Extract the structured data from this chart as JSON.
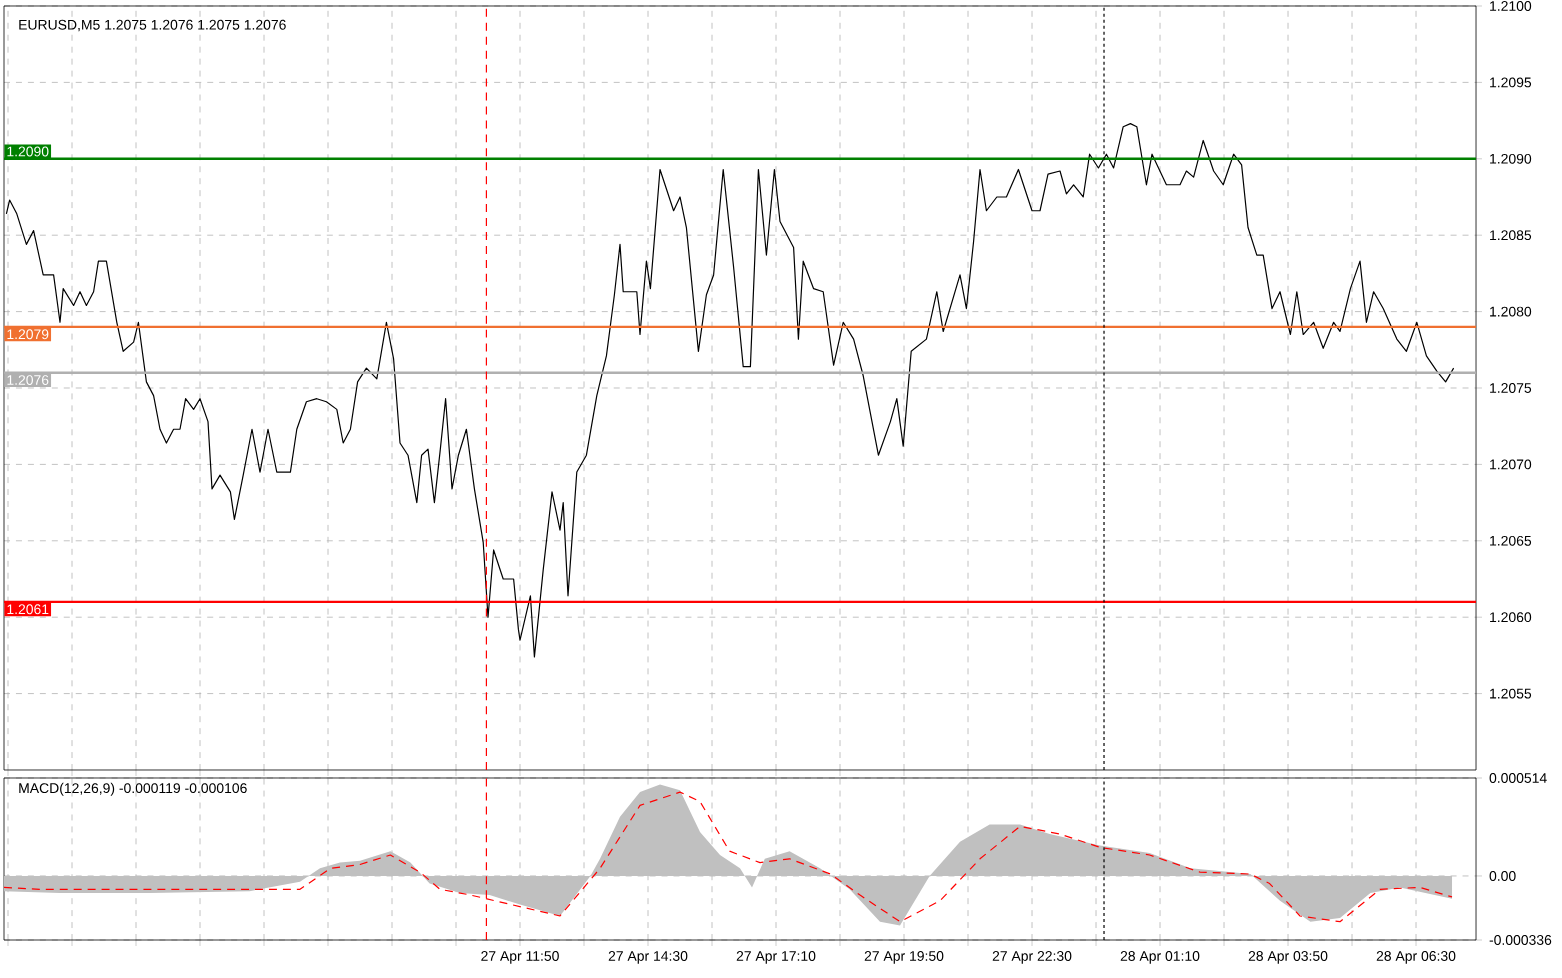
{
  "chart_data": [
    {
      "type": "line",
      "title": "EURUSD,M5  1.2075 1.2076 1.2075 1.2076",
      "grid": true,
      "tick_labels": "y",
      "xlim": [
        "--04-27T01:05",
        "--04-28T07:45"
      ],
      "xticks": [
        {
          "value": "--04-27T01:10",
          "label": null
        },
        {
          "value": "--04-27T02:30",
          "label": null
        },
        {
          "value": "--04-27T03:50",
          "label": null
        },
        {
          "value": "--04-27T05:10",
          "label": null
        },
        {
          "value": "--04-27T06:30",
          "label": null
        },
        {
          "value": "--04-27T07:50",
          "label": null
        },
        {
          "value": "--04-27T09:10",
          "label": null
        },
        {
          "value": "--04-27T10:30",
          "label": null
        },
        {
          "value": "--04-27T11:50",
          "label": null
        },
        {
          "value": "--04-27T13:10",
          "label": null
        },
        {
          "value": "--04-27T14:30",
          "label": null
        },
        {
          "value": "--04-27T15:50",
          "label": null
        },
        {
          "value": "--04-27T17:10",
          "label": null
        },
        {
          "value": "--04-27T18:30",
          "label": null
        },
        {
          "value": "--04-27T19:50",
          "label": null
        },
        {
          "value": "--04-27T21:10",
          "label": null
        },
        {
          "value": "--04-27T22:30",
          "label": null
        },
        {
          "value": "--04-27T23:50",
          "label": null
        },
        {
          "value": "--04-28T01:10",
          "label": null
        },
        {
          "value": "--04-28T02:30",
          "label": null
        },
        {
          "value": "--04-28T03:50",
          "label": null
        },
        {
          "value": "--04-28T05:10",
          "label": null
        },
        {
          "value": "--04-28T06:30",
          "label": null
        }
      ],
      "ylim": [
        1.205,
        1.21
      ],
      "yticks": [
        {
          "value": 1.2055,
          "label": "1.2055"
        },
        {
          "value": 1.206,
          "label": "1.2060"
        },
        {
          "value": 1.2065,
          "label": "1.2065"
        },
        {
          "value": 1.207,
          "label": "1.2070"
        },
        {
          "value": 1.2075,
          "label": "1.2075"
        },
        {
          "value": 1.208,
          "label": "1.2080"
        },
        {
          "value": 1.2085,
          "label": "1.2085"
        },
        {
          "value": 1.209,
          "label": "1.2090"
        },
        {
          "value": 1.2095,
          "label": "1.2095"
        },
        {
          "value": 1.21,
          "label": "1.2100"
        }
      ],
      "ref_lines": [
        {
          "axis": "y",
          "value": 1.209,
          "label": "1.2090",
          "color": "#008000"
        },
        {
          "axis": "y",
          "value": 1.2079,
          "label": "1.2079",
          "color": "#f07030"
        },
        {
          "axis": "y",
          "value": 1.2076,
          "label": "1.2076",
          "color": "#b0b0b0"
        },
        {
          "axis": "y",
          "value": 1.2061,
          "label": "1.2061",
          "color": "#ff0000"
        },
        {
          "axis": "x",
          "value": "--04-27T11:08",
          "color": "#ff0000",
          "line_style": "dashed"
        },
        {
          "axis": "x",
          "value": "--04-28T00:00",
          "color": "#000000",
          "line_style": "dotted"
        }
      ],
      "series": [
        {
          "color": "#000000",
          "x": [
            "--04-27T01:08",
            "--04-27T01:12",
            "--04-27T01:21",
            "--04-27T01:33",
            "--04-27T01:42",
            "--04-27T01:54",
            "--04-27T02:07",
            "--04-27T02:15",
            "--04-27T02:19",
            "--04-27T02:32",
            "--04-27T02:40",
            "--04-27T02:48",
            "--04-27T02:57",
            "--04-27T03:03",
            "--04-27T03:13",
            "--04-27T03:26",
            "--04-27T03:34",
            "--04-27T03:47",
            "--04-27T03:53",
            "--04-27T04:03",
            "--04-27T04:12",
            "--04-27T04:20",
            "--04-27T04:28",
            "--04-27T04:37",
            "--04-27T04:45",
            "--04-27T04:52",
            "--04-27T05:02",
            "--04-27T05:10",
            "--04-27T05:20",
            "--04-27T05:25",
            "--04-27T05:35",
            "--04-27T05:48",
            "--04-27T05:53",
            "--04-27T06:04",
            "--04-27T06:15",
            "--04-27T06:25",
            "--04-27T06:35",
            "--04-27T06:46",
            "--04-27T07:03",
            "--04-27T07:11",
            "--04-27T07:23",
            "--04-27T07:36",
            "--04-27T07:48",
            "--04-27T08:01",
            "--04-27T08:09",
            "--04-27T08:18",
            "--04-27T08:27",
            "--04-27T08:38",
            "--04-27T08:51",
            "--04-27T09:03",
            "--04-27T09:12",
            "--04-27T09:20",
            "--04-27T09:30",
            "--04-27T09:41",
            "--04-27T09:47",
            "--04-27T09:55",
            "--04-27T10:03",
            "--04-27T10:10",
            "--04-27T10:17",
            "--04-27T10:25",
            "--04-27T10:33",
            "--04-27T10:43",
            "--04-27T10:53",
            "--04-27T11:04",
            "--04-27T11:10",
            "--04-27T11:17",
            "--04-27T11:29",
            "--04-27T11:42",
            "--04-27T11:48",
            "--04-27T11:50",
            "--04-27T12:03",
            "--04-27T12:08",
            "--04-27T12:19",
            "--04-27T12:30",
            "--04-27T12:40",
            "--04-27T12:44",
            "--04-27T12:50",
            "--04-27T13:01",
            "--04-27T13:13",
            "--04-27T13:26",
            "--04-27T13:38",
            "--04-27T13:48",
            "--04-27T13:55",
            "--04-27T13:59",
            "--04-27T14:16",
            "--04-27T14:20",
            "--04-27T14:28",
            "--04-27T14:33",
            "--04-27T14:45",
            "--04-27T15:02",
            "--04-27T15:10",
            "--04-27T15:18",
            "--04-27T15:33",
            "--04-27T15:43",
            "--04-27T15:52",
            "--04-27T16:04",
            "--04-27T16:17",
            "--04-27T16:29",
            "--04-27T16:38",
            "--04-27T16:48",
            "--04-27T16:58",
            "--04-27T17:08",
            "--04-27T17:15",
            "--04-27T17:32",
            "--04-27T17:38",
            "--04-27T17:44",
            "--04-27T17:57",
            "--04-27T18:09",
            "--04-27T18:22",
            "--04-27T18:34",
            "--04-27T18:47",
            "--04-27T18:59",
            "--04-27T19:18",
            "--04-27T19:33",
            "--04-27T19:41",
            "--04-27T19:49",
            "--04-27T19:59",
            "--04-27T20:18",
            "--04-27T20:31",
            "--04-27T20:39",
            "--04-27T21:00",
            "--04-27T21:08",
            "--04-27T21:17",
            "--04-27T21:25",
            "--04-27T21:33",
            "--04-27T21:46",
            "--04-27T21:58",
            "--04-27T22:13",
            "--04-27T22:30",
            "--04-27T22:40",
            "--04-27T22:50",
            "--04-27T23:05",
            "--04-27T23:13",
            "--04-27T23:22",
            "--04-27T23:34",
            "--04-27T23:42",
            "--04-27T23:53",
            "--04-28T00:03",
            "--04-28T00:12",
            "--04-28T00:24",
            "--04-28T00:33",
            "--04-28T00:41",
            "--04-28T00:53",
            "--04-28T01:00",
            "--04-28T01:18",
            "--04-28T01:35",
            "--04-28T01:43",
            "--04-28T01:52",
            "--04-28T02:04",
            "--04-28T02:17",
            "--04-28T02:29",
            "--04-28T02:42",
            "--04-28T02:52",
            "--04-28T03:00",
            "--04-28T03:11",
            "--04-28T03:19",
            "--04-28T03:30",
            "--04-28T03:40",
            "--04-28T03:53",
            "--04-28T04:01",
            "--04-28T04:09",
            "--04-28T04:22",
            "--04-28T04:34",
            "--04-28T04:47",
            "--04-28T04:55",
            "--04-28T05:08",
            "--04-28T05:20",
            "--04-28T05:28",
            "--04-28T05:37",
            "--04-28T05:49",
            "--04-28T06:06",
            "--04-28T06:18",
            "--04-28T06:31",
            "--04-28T06:43",
            "--04-28T06:56",
            "--04-28T07:07",
            "--04-28T07:17"
          ],
          "values": [
            1.20864,
            1.20873,
            1.20864,
            1.20844,
            1.20853,
            1.20824,
            1.20824,
            1.20793,
            1.20815,
            1.20804,
            1.20813,
            1.20804,
            1.20813,
            1.20833,
            1.20833,
            1.20793,
            1.20774,
            1.2078,
            1.20793,
            1.20754,
            1.20745,
            1.20723,
            1.20714,
            1.20723,
            1.20723,
            1.20743,
            1.20736,
            1.20743,
            1.20728,
            1.20684,
            1.20693,
            1.20682,
            1.20664,
            1.20693,
            1.20723,
            1.20695,
            1.20723,
            1.20695,
            1.20695,
            1.20723,
            1.20741,
            1.20743,
            1.20741,
            1.20736,
            1.20714,
            1.20723,
            1.20754,
            1.20763,
            1.20756,
            1.20793,
            1.20769,
            1.20714,
            1.20706,
            1.20675,
            1.20706,
            1.2071,
            1.20675,
            1.20708,
            1.20743,
            1.20684,
            1.20706,
            1.20723,
            1.20684,
            1.20649,
            1.206,
            1.20644,
            1.20625,
            1.20625,
            1.20592,
            1.20585,
            1.20614,
            1.20574,
            1.20631,
            1.20682,
            1.20657,
            1.20675,
            1.20614,
            1.20695,
            1.20706,
            1.20745,
            1.20771,
            1.20811,
            1.20844,
            1.20813,
            1.20813,
            1.20785,
            1.20833,
            1.20815,
            1.20893,
            1.20866,
            1.20875,
            1.20855,
            1.20774,
            1.20811,
            1.20824,
            1.20893,
            1.20829,
            1.20764,
            1.20764,
            1.20893,
            1.20837,
            1.20893,
            1.20859,
            1.20842,
            1.20782,
            1.20833,
            1.20815,
            1.20813,
            1.20765,
            1.20793,
            1.20782,
            1.20758,
            1.20706,
            1.20728,
            1.20743,
            1.20712,
            1.20774,
            1.20782,
            1.20813,
            1.20787,
            1.20824,
            1.20802,
            1.20846,
            1.20893,
            1.20866,
            1.20875,
            1.20875,
            1.20893,
            1.20866,
            1.20866,
            1.2089,
            1.20892,
            1.20877,
            1.20883,
            1.20875,
            1.20903,
            1.20894,
            1.20903,
            1.20894,
            1.20921,
            1.20923,
            1.20921,
            1.20883,
            1.20903,
            1.20883,
            1.20883,
            1.20892,
            1.20888,
            1.20912,
            1.20892,
            1.20883,
            1.20903,
            1.20896,
            1.20855,
            1.20837,
            1.20837,
            1.20802,
            1.20813,
            1.20785,
            1.20813,
            1.20785,
            1.20793,
            1.20776,
            1.20793,
            1.20787,
            1.20815,
            1.20833,
            1.20793,
            1.20813,
            1.20802,
            1.20782,
            1.20774,
            1.20793,
            1.20771,
            1.20761,
            1.20754,
            1.20763
          ]
        }
      ]
    },
    {
      "type": "line",
      "title": "MACD(12,26,9) -0.000119 -0.000106",
      "grid": true,
      "xlim": [
        "--04-27T01:05",
        "--04-28T07:45"
      ],
      "xticks": [
        {
          "value": "--04-27T01:10",
          "label": null
        },
        {
          "value": "--04-27T02:30",
          "label": null
        },
        {
          "value": "--04-27T03:50",
          "label": null
        },
        {
          "value": "--04-27T05:10",
          "label": null
        },
        {
          "value": "--04-27T06:30",
          "label": null
        },
        {
          "value": "--04-27T07:50",
          "label": null
        },
        {
          "value": "--04-27T09:10",
          "label": null
        },
        {
          "value": "--04-27T10:30",
          "label": null
        },
        {
          "value": "--04-27T11:50",
          "label": "27 Apr 11:50"
        },
        {
          "value": "--04-27T13:10",
          "label": null
        },
        {
          "value": "--04-27T14:30",
          "label": "27 Apr 14:30"
        },
        {
          "value": "--04-27T15:50",
          "label": null
        },
        {
          "value": "--04-27T17:10",
          "label": "27 Apr 17:10"
        },
        {
          "value": "--04-27T18:30",
          "label": null
        },
        {
          "value": "--04-27T19:50",
          "label": "27 Apr 19:50"
        },
        {
          "value": "--04-27T21:10",
          "label": null
        },
        {
          "value": "--04-27T22:30",
          "label": "27 Apr 22:30"
        },
        {
          "value": "--04-27T23:50",
          "label": null
        },
        {
          "value": "--04-28T01:10",
          "label": "28 Apr 01:10"
        },
        {
          "value": "--04-28T02:30",
          "label": null
        },
        {
          "value": "--04-28T03:50",
          "label": "28 Apr 03:50"
        },
        {
          "value": "--04-28T05:10",
          "label": null
        },
        {
          "value": "--04-28T06:30",
          "label": "28 Apr 06:30"
        }
      ],
      "ylim": [
        -0.000336,
        0.000514
      ],
      "yticks": [
        {
          "value": -0.000336,
          "label": "-0.000336"
        },
        {
          "value": 0,
          "label": "0.00"
        },
        {
          "value": 0.000514,
          "label": "0.000514"
        }
      ],
      "ref_lines": [
        {
          "axis": "x",
          "value": "--04-27T11:08",
          "color": "#ff0000",
          "line_style": "dashed"
        },
        {
          "axis": "x",
          "value": "--04-28T00:00",
          "color": "#000000",
          "line_style": "dotted"
        }
      ],
      "series": [
        {
          "type": "area",
          "color": "#c0c0c0",
          "x": [
            "--04-27T01:05",
            "--04-27T02:15",
            "--04-27T04:08",
            "--04-27T06:12",
            "--04-27T07:15",
            "--04-27T07:40",
            "--04-27T08:05",
            "--04-27T08:30",
            "--04-27T09:08",
            "--04-27T09:33",
            "--04-27T09:57",
            "--04-27T10:35",
            "--04-27T11:12",
            "--04-27T11:50",
            "--04-27T12:40",
            "--04-27T13:18",
            "--04-27T13:30",
            "--04-27T13:55",
            "--04-27T14:20",
            "--04-27T14:45",
            "--04-27T15:10",
            "--04-27T15:35",
            "--04-27T16:00",
            "--04-27T16:25",
            "--04-27T16:40",
            "--04-27T16:56",
            "--04-27T17:27",
            "--04-27T18:05",
            "--04-27T18:42",
            "--04-27T19:20",
            "--04-27T19:45",
            "--04-27T20:22",
            "--04-27T21:00",
            "--04-27T21:37",
            "--04-27T22:15",
            "--04-27T22:52",
            "--04-27T23:55",
            "--04-28T00:57",
            "--04-28T01:48",
            "--04-28T03:03",
            "--04-28T03:40",
            "--04-28T04:18",
            "--04-28T04:55",
            "--04-28T05:33",
            "--04-28T06:10",
            "--04-28T07:15"
          ],
          "values": [
            -8e-05,
            -9e-05,
            -9e-05,
            -8e-05,
            -3e-05,
            4e-05,
            7e-05,
            8e-05,
            0.00013,
            7e-05,
            -4e-05,
            -9e-05,
            -0.0001,
            -0.00015,
            -0.00021,
            0,
            9e-05,
            0.00031,
            0.00044,
            0.00048,
            0.00045,
            0.00023,
            0.00011,
            4e-05,
            -6e-05,
            9e-05,
            0.00013,
            4e-05,
            -7e-05,
            -0.00024,
            -0.00026,
            0,
            0.00018,
            0.00027,
            0.00027,
            0.00022,
            0.00016,
            0.00012,
            4e-05,
            1e-05,
            -0.00013,
            -0.00024,
            -0.00022,
            -9e-05,
            -6e-05,
            -0.00012
          ]
        },
        {
          "type": "line",
          "color": "#ff0000",
          "line_style": "dashed",
          "x": [
            "--04-27T01:05",
            "--04-27T01:50",
            "--04-27T07:15",
            "--04-27T07:53",
            "--04-27T08:30",
            "--04-27T09:08",
            "--04-27T09:45",
            "--04-27T10:10",
            "--04-27T10:48",
            "--04-27T12:40",
            "--04-27T13:30",
            "--04-27T14:20",
            "--04-27T15:10",
            "--04-27T15:35",
            "--04-27T16:12",
            "--04-27T16:50",
            "--04-27T17:27",
            "--04-27T18:18",
            "--04-27T18:55",
            "--04-27T19:45",
            "--04-27T20:35",
            "--04-27T21:25",
            "--04-27T22:15",
            "--04-27T23:05",
            "--04-27T23:55",
            "--04-28T00:57",
            "--04-28T02:00",
            "--04-28T03:03",
            "--04-28T03:27",
            "--04-28T04:05",
            "--04-28T04:55",
            "--04-28T05:45",
            "--04-28T06:35",
            "--04-28T07:15"
          ],
          "values": [
            -6e-05,
            -7e-05,
            -7e-05,
            4e-05,
            6e-05,
            0.00011,
            2e-05,
            -7e-05,
            -0.0001,
            -0.00021,
            4e-05,
            0.00037,
            0.00044,
            0.00039,
            0.00013,
            7e-05,
            9e-05,
            1e-05,
            -0.0001,
            -0.00024,
            -0.00013,
            9e-05,
            0.00026,
            0.00022,
            0.00015,
            0.00011,
            2e-05,
            1e-05,
            -4e-05,
            -0.00021,
            -0.00024,
            -7e-05,
            -6e-05,
            -0.00011
          ]
        }
      ]
    }
  ]
}
